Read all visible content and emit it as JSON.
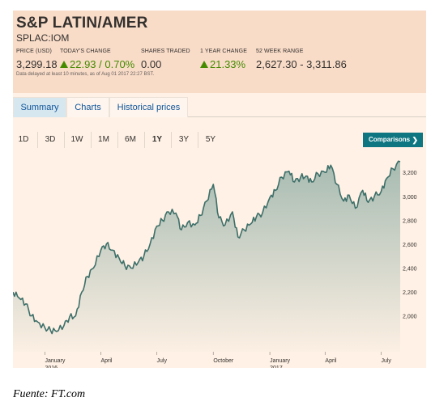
{
  "quote": {
    "title": "S&P LATIN/AMER",
    "symbol": "SPLAC:IOM",
    "stats": [
      {
        "label": "PRICE (USD)",
        "value": "3,299.18"
      },
      {
        "label": "TODAY'S CHANGE",
        "value": "22.93 / 0.70%"
      },
      {
        "label": "SHARES TRADED",
        "value": "0.00"
      },
      {
        "label": "1 YEAR CHANGE",
        "value": "21.33%"
      },
      {
        "label": "52 WEEK RANGE",
        "value": "2,627.30 - 3,311.86"
      }
    ],
    "delay_note": "Data delayed at least 10 minutes, as of Aug 01 2017 22:27 BST.",
    "positive_color": "#458b00"
  },
  "tabs": [
    "Summary",
    "Charts",
    "Historical prices"
  ],
  "ranges": [
    "1D",
    "3D",
    "1W",
    "1M",
    "6M",
    "1Y",
    "3Y",
    "5Y"
  ],
  "selected_range": "1Y",
  "comparisons_label": "Comparisons",
  "caption": "Fuente: FT.com",
  "colors": {
    "accent": "#0d7680",
    "line": "#3d6f69",
    "background": "#fff1e5",
    "header": "#f9dcc8"
  },
  "chart_data": {
    "type": "area",
    "x_tick_labels": [
      {
        "label": "January",
        "sub": "2016",
        "date": "2016-01-01"
      },
      {
        "label": "April",
        "sub": "",
        "date": "2016-04-01"
      },
      {
        "label": "July",
        "sub": "",
        "date": "2016-07-01"
      },
      {
        "label": "October",
        "sub": "",
        "date": "2016-10-01"
      },
      {
        "label": "January",
        "sub": "2017",
        "date": "2017-01-01"
      },
      {
        "label": "April",
        "sub": "",
        "date": "2017-04-01"
      },
      {
        "label": "July",
        "sub": "",
        "date": "2017-07-01"
      }
    ],
    "y_ticks": [
      "3,200",
      "3,000",
      "2,800",
      "2,600",
      "2,400",
      "2,200",
      "2,000"
    ],
    "y_tick_values": [
      3200,
      3000,
      2800,
      2600,
      2400,
      2200,
      2000
    ],
    "ylim": [
      1700,
      3350
    ],
    "xlim": [
      "2015-11-10",
      "2017-08-01"
    ],
    "series": [
      {
        "points": [
          [
            "2015-11-10",
            2200
          ],
          [
            "2015-11-20",
            2150
          ],
          [
            "2015-12-01",
            2100
          ],
          [
            "2015-12-10",
            2000
          ],
          [
            "2015-12-20",
            1950
          ],
          [
            "2016-01-01",
            1900
          ],
          [
            "2016-01-10",
            1880
          ],
          [
            "2016-01-20",
            1870
          ],
          [
            "2016-02-01",
            1920
          ],
          [
            "2016-02-10",
            1990
          ],
          [
            "2016-02-20",
            2000
          ],
          [
            "2016-03-01",
            2200
          ],
          [
            "2016-03-10",
            2330
          ],
          [
            "2016-03-20",
            2400
          ],
          [
            "2016-04-01",
            2550
          ],
          [
            "2016-04-10",
            2600
          ],
          [
            "2016-04-20",
            2550
          ],
          [
            "2016-05-01",
            2480
          ],
          [
            "2016-05-10",
            2420
          ],
          [
            "2016-05-20",
            2400
          ],
          [
            "2016-06-01",
            2450
          ],
          [
            "2016-06-10",
            2500
          ],
          [
            "2016-06-20",
            2600
          ],
          [
            "2016-07-01",
            2750
          ],
          [
            "2016-07-10",
            2800
          ],
          [
            "2016-07-20",
            2870
          ],
          [
            "2016-08-01",
            2860
          ],
          [
            "2016-08-10",
            2720
          ],
          [
            "2016-08-20",
            2780
          ],
          [
            "2016-09-01",
            2760
          ],
          [
            "2016-09-10",
            2840
          ],
          [
            "2016-09-20",
            2960
          ],
          [
            "2016-10-01",
            3100
          ],
          [
            "2016-10-10",
            2820
          ],
          [
            "2016-10-20",
            2760
          ],
          [
            "2016-11-01",
            2870
          ],
          [
            "2016-11-10",
            2660
          ],
          [
            "2016-11-20",
            2720
          ],
          [
            "2016-12-01",
            2770
          ],
          [
            "2016-12-10",
            2830
          ],
          [
            "2016-12-20",
            2860
          ],
          [
            "2017-01-01",
            2990
          ],
          [
            "2017-01-10",
            3050
          ],
          [
            "2017-01-20",
            3160
          ],
          [
            "2017-02-01",
            3210
          ],
          [
            "2017-02-10",
            3120
          ],
          [
            "2017-02-20",
            3160
          ],
          [
            "2017-03-01",
            3170
          ],
          [
            "2017-03-10",
            3120
          ],
          [
            "2017-03-20",
            3190
          ],
          [
            "2017-04-01",
            3200
          ],
          [
            "2017-04-10",
            3260
          ],
          [
            "2017-04-20",
            3100
          ],
          [
            "2017-05-01",
            2960
          ],
          [
            "2017-05-10",
            3010
          ],
          [
            "2017-05-20",
            2900
          ],
          [
            "2017-06-01",
            3050
          ],
          [
            "2017-06-10",
            2950
          ],
          [
            "2017-06-20",
            3000
          ],
          [
            "2017-07-01",
            3040
          ],
          [
            "2017-07-10",
            3150
          ],
          [
            "2017-07-20",
            3230
          ],
          [
            "2017-08-01",
            3290
          ]
        ]
      }
    ]
  }
}
